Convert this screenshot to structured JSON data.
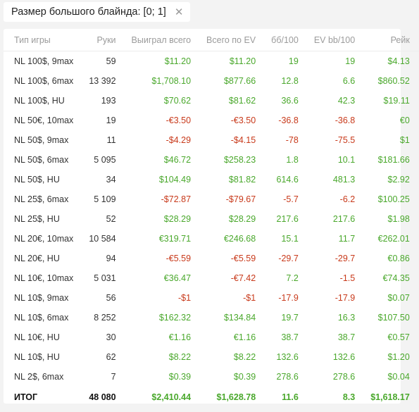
{
  "filter": {
    "label": "Размер большого блайнда: [0; 1]",
    "close_glyph": "✕"
  },
  "table": {
    "columns": [
      "Тип игры",
      "Руки",
      "Выиграл всего",
      "Всего по EV",
      "бб/100",
      "EV bb/100",
      "Рейк"
    ],
    "rows": [
      {
        "game": "NL 100$, 9max",
        "hands": "59",
        "won": "$11.20",
        "ev": "$11.20",
        "bb100": "19",
        "evbb100": "19",
        "rake": "$4.13"
      },
      {
        "game": "NL 100$, 6max",
        "hands": "13 392",
        "won": "$1,708.10",
        "ev": "$877.66",
        "bb100": "12.8",
        "evbb100": "6.6",
        "rake": "$860.52"
      },
      {
        "game": "NL 100$, HU",
        "hands": "193",
        "won": "$70.62",
        "ev": "$81.62",
        "bb100": "36.6",
        "evbb100": "42.3",
        "rake": "$19.11"
      },
      {
        "game": "NL 50€, 10max",
        "hands": "19",
        "won": "-€3.50",
        "ev": "-€3.50",
        "bb100": "-36.8",
        "evbb100": "-36.8",
        "rake": "€0"
      },
      {
        "game": "NL 50$, 9max",
        "hands": "11",
        "won": "-$4.29",
        "ev": "-$4.15",
        "bb100": "-78",
        "evbb100": "-75.5",
        "rake": "$1"
      },
      {
        "game": "NL 50$, 6max",
        "hands": "5 095",
        "won": "$46.72",
        "ev": "$258.23",
        "bb100": "1.8",
        "evbb100": "10.1",
        "rake": "$181.66"
      },
      {
        "game": "NL 50$, HU",
        "hands": "34",
        "won": "$104.49",
        "ev": "$81.82",
        "bb100": "614.6",
        "evbb100": "481.3",
        "rake": "$2.92"
      },
      {
        "game": "NL 25$, 6max",
        "hands": "5 109",
        "won": "-$72.87",
        "ev": "-$79.67",
        "bb100": "-5.7",
        "evbb100": "-6.2",
        "rake": "$100.25"
      },
      {
        "game": "NL 25$, HU",
        "hands": "52",
        "won": "$28.29",
        "ev": "$28.29",
        "bb100": "217.6",
        "evbb100": "217.6",
        "rake": "$1.98"
      },
      {
        "game": "NL 20€, 10max",
        "hands": "10 584",
        "won": "€319.71",
        "ev": "€246.68",
        "bb100": "15.1",
        "evbb100": "11.7",
        "rake": "€262.01"
      },
      {
        "game": "NL 20€, HU",
        "hands": "94",
        "won": "-€5.59",
        "ev": "-€5.59",
        "bb100": "-29.7",
        "evbb100": "-29.7",
        "rake": "€0.86"
      },
      {
        "game": "NL 10€, 10max",
        "hands": "5 031",
        "won": "€36.47",
        "ev": "-€7.42",
        "bb100": "7.2",
        "evbb100": "-1.5",
        "rake": "€74.35"
      },
      {
        "game": "NL 10$, 9max",
        "hands": "56",
        "won": "-$1",
        "ev": "-$1",
        "bb100": "-17.9",
        "evbb100": "-17.9",
        "rake": "$0.07"
      },
      {
        "game": "NL 10$, 6max",
        "hands": "8 252",
        "won": "$162.32",
        "ev": "$134.84",
        "bb100": "19.7",
        "evbb100": "16.3",
        "rake": "$107.50"
      },
      {
        "game": "NL 10€, HU",
        "hands": "30",
        "won": "€1.16",
        "ev": "€1.16",
        "bb100": "38.7",
        "evbb100": "38.7",
        "rake": "€0.57"
      },
      {
        "game": "NL 10$, HU",
        "hands": "62",
        "won": "$8.22",
        "ev": "$8.22",
        "bb100": "132.6",
        "evbb100": "132.6",
        "rake": "$1.20"
      },
      {
        "game": "NL 2$, 6max",
        "hands": "7",
        "won": "$0.39",
        "ev": "$0.39",
        "bb100": "278.6",
        "evbb100": "278.6",
        "rake": "$0.04"
      }
    ],
    "total": {
      "game": "ИТОГ",
      "hands": "48 080",
      "won": "$2,410.44",
      "ev": "$1,628.78",
      "bb100": "11.6",
      "evbb100": "8.3",
      "rake": "$1,618.17"
    }
  },
  "colors": {
    "positive": "#4aa82c",
    "negative": "#c8391a",
    "header_text": "#9b9b9b",
    "background": "#f3f3f3"
  }
}
